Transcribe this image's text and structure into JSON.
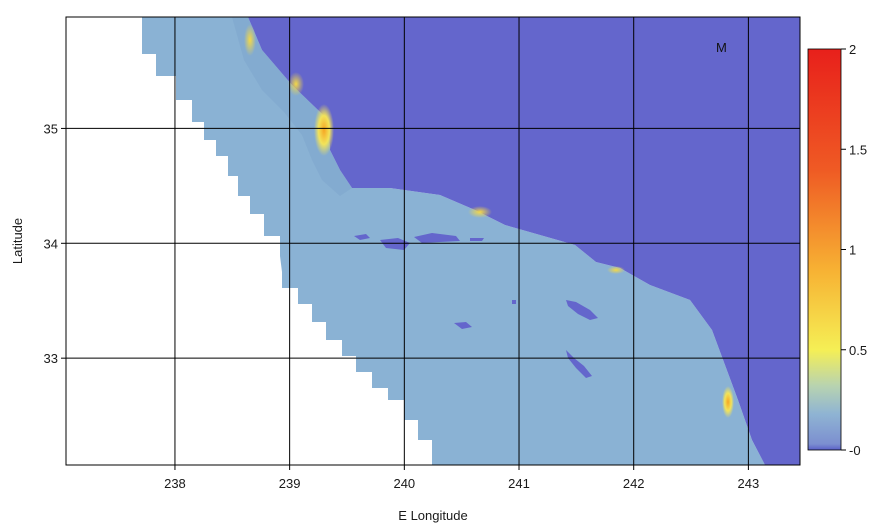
{
  "panel_label": "M",
  "colors": {
    "land": "#6466cc",
    "ocean": "#8ab2d4",
    "no_data": "#ffffff",
    "grid": "#000000"
  },
  "chart_data": {
    "type": "heatmap",
    "title": "",
    "xlabel": "E Longitude",
    "ylabel": "Latitude",
    "xlim": [
      237.05,
      243.45
    ],
    "ylim": [
      32.07,
      35.97
    ],
    "x_ticks": [
      238,
      239,
      240,
      241,
      242,
      243
    ],
    "y_ticks": [
      33,
      34,
      35
    ],
    "grid": true,
    "colorbar": {
      "ticks": [
        {
          "value": 2,
          "label": "2"
        },
        {
          "value": 1.5,
          "label": "1.5"
        },
        {
          "value": 1,
          "label": "1"
        },
        {
          "value": 0.5,
          "label": "0.5"
        },
        {
          "value": 0,
          "label": "-0"
        }
      ],
      "range": [
        0,
        2
      ],
      "colors": [
        "#5a5fc8",
        "#8fb4d3",
        "#f5ef55",
        "#f7b133",
        "#ef5a24",
        "#e8201b"
      ],
      "placement": "right"
    }
  }
}
